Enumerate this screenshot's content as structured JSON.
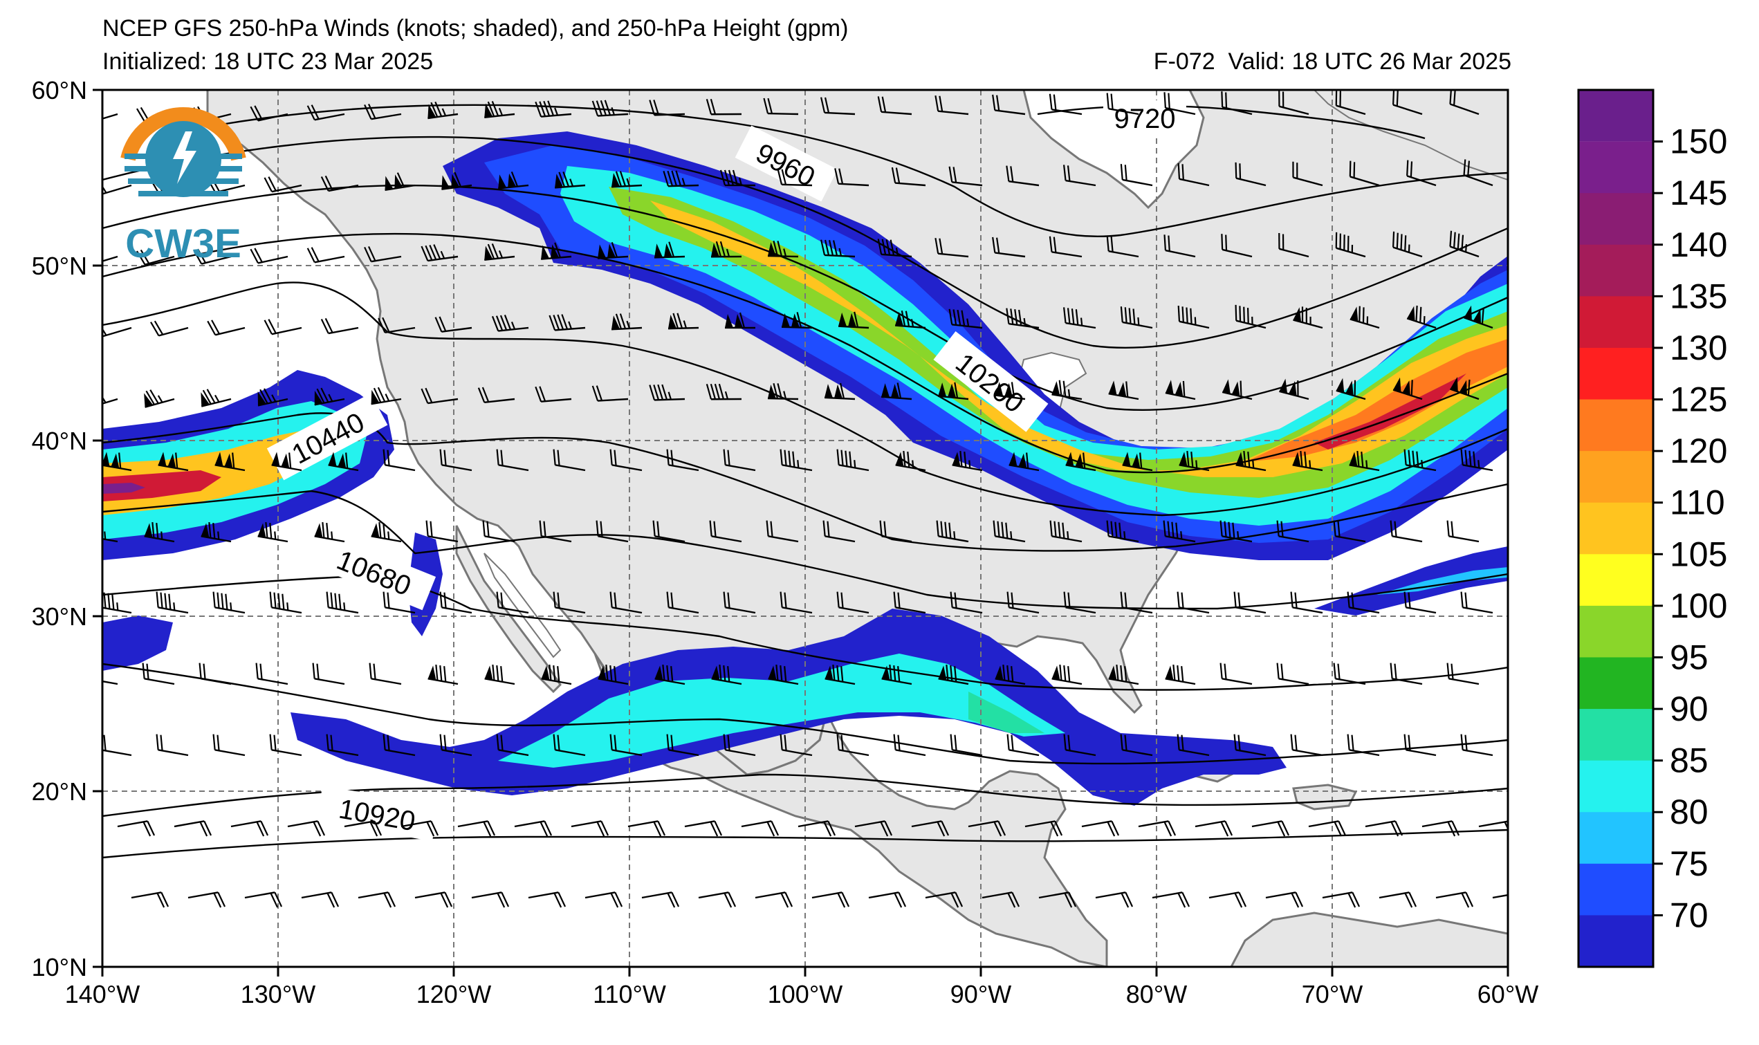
{
  "header": {
    "title": "NCEP GFS 250-hPa Winds (knots; shaded), and 250-hPa Height (gpm)",
    "initialized": "Initialized: 18 UTC 23 Mar 2025",
    "forecast": "F-072",
    "valid": "Valid: 18 UTC 26 Mar 2025"
  },
  "logo": {
    "text": "CW3E"
  },
  "map": {
    "lon_range": [
      -140,
      -60
    ],
    "lat_range": [
      10,
      60
    ],
    "lon_ticks": [
      "140°W",
      "130°W",
      "120°W",
      "110°W",
      "100°W",
      "90°W",
      "80°W",
      "70°W",
      "60°W"
    ],
    "lat_ticks": [
      "60°N",
      "50°N",
      "40°N",
      "30°N",
      "20°N",
      "10°N"
    ],
    "grid": "dashed",
    "land_color": "#e6e6e6",
    "ocean_color": "#ffffff"
  },
  "height_contours": [
    {
      "label": "9720",
      "lon": -99.0,
      "lat": 58.2
    },
    {
      "label": "9960",
      "lon": -103.5,
      "lat": 53.8
    },
    {
      "label": "10200",
      "lon": -91.0,
      "lat": 43.2
    },
    {
      "label": "10440",
      "lon": -126.0,
      "lat": 40.0
    },
    {
      "label": "10680",
      "lon": -125.3,
      "lat": 32.0
    },
    {
      "label": "10920",
      "lon": -126.0,
      "lat": 18.8
    }
  ],
  "colorbar": {
    "labels": [
      "150",
      "145",
      "140",
      "135",
      "130",
      "125",
      "120",
      "110",
      "105",
      "100",
      "95",
      "90",
      "85",
      "80",
      "75",
      "70"
    ],
    "colors": [
      "#7a1f8c",
      "#8a1d73",
      "#a41c5a",
      "#d01a36",
      "#ff2020",
      "#ff7a1f",
      "#ffa21f",
      "#ffc41f",
      "#ffff1f",
      "#8ad62a",
      "#22b522",
      "#23e0a4",
      "#25f2ee",
      "#22c4ff",
      "#1f4dff",
      "#2222cc"
    ]
  }
}
